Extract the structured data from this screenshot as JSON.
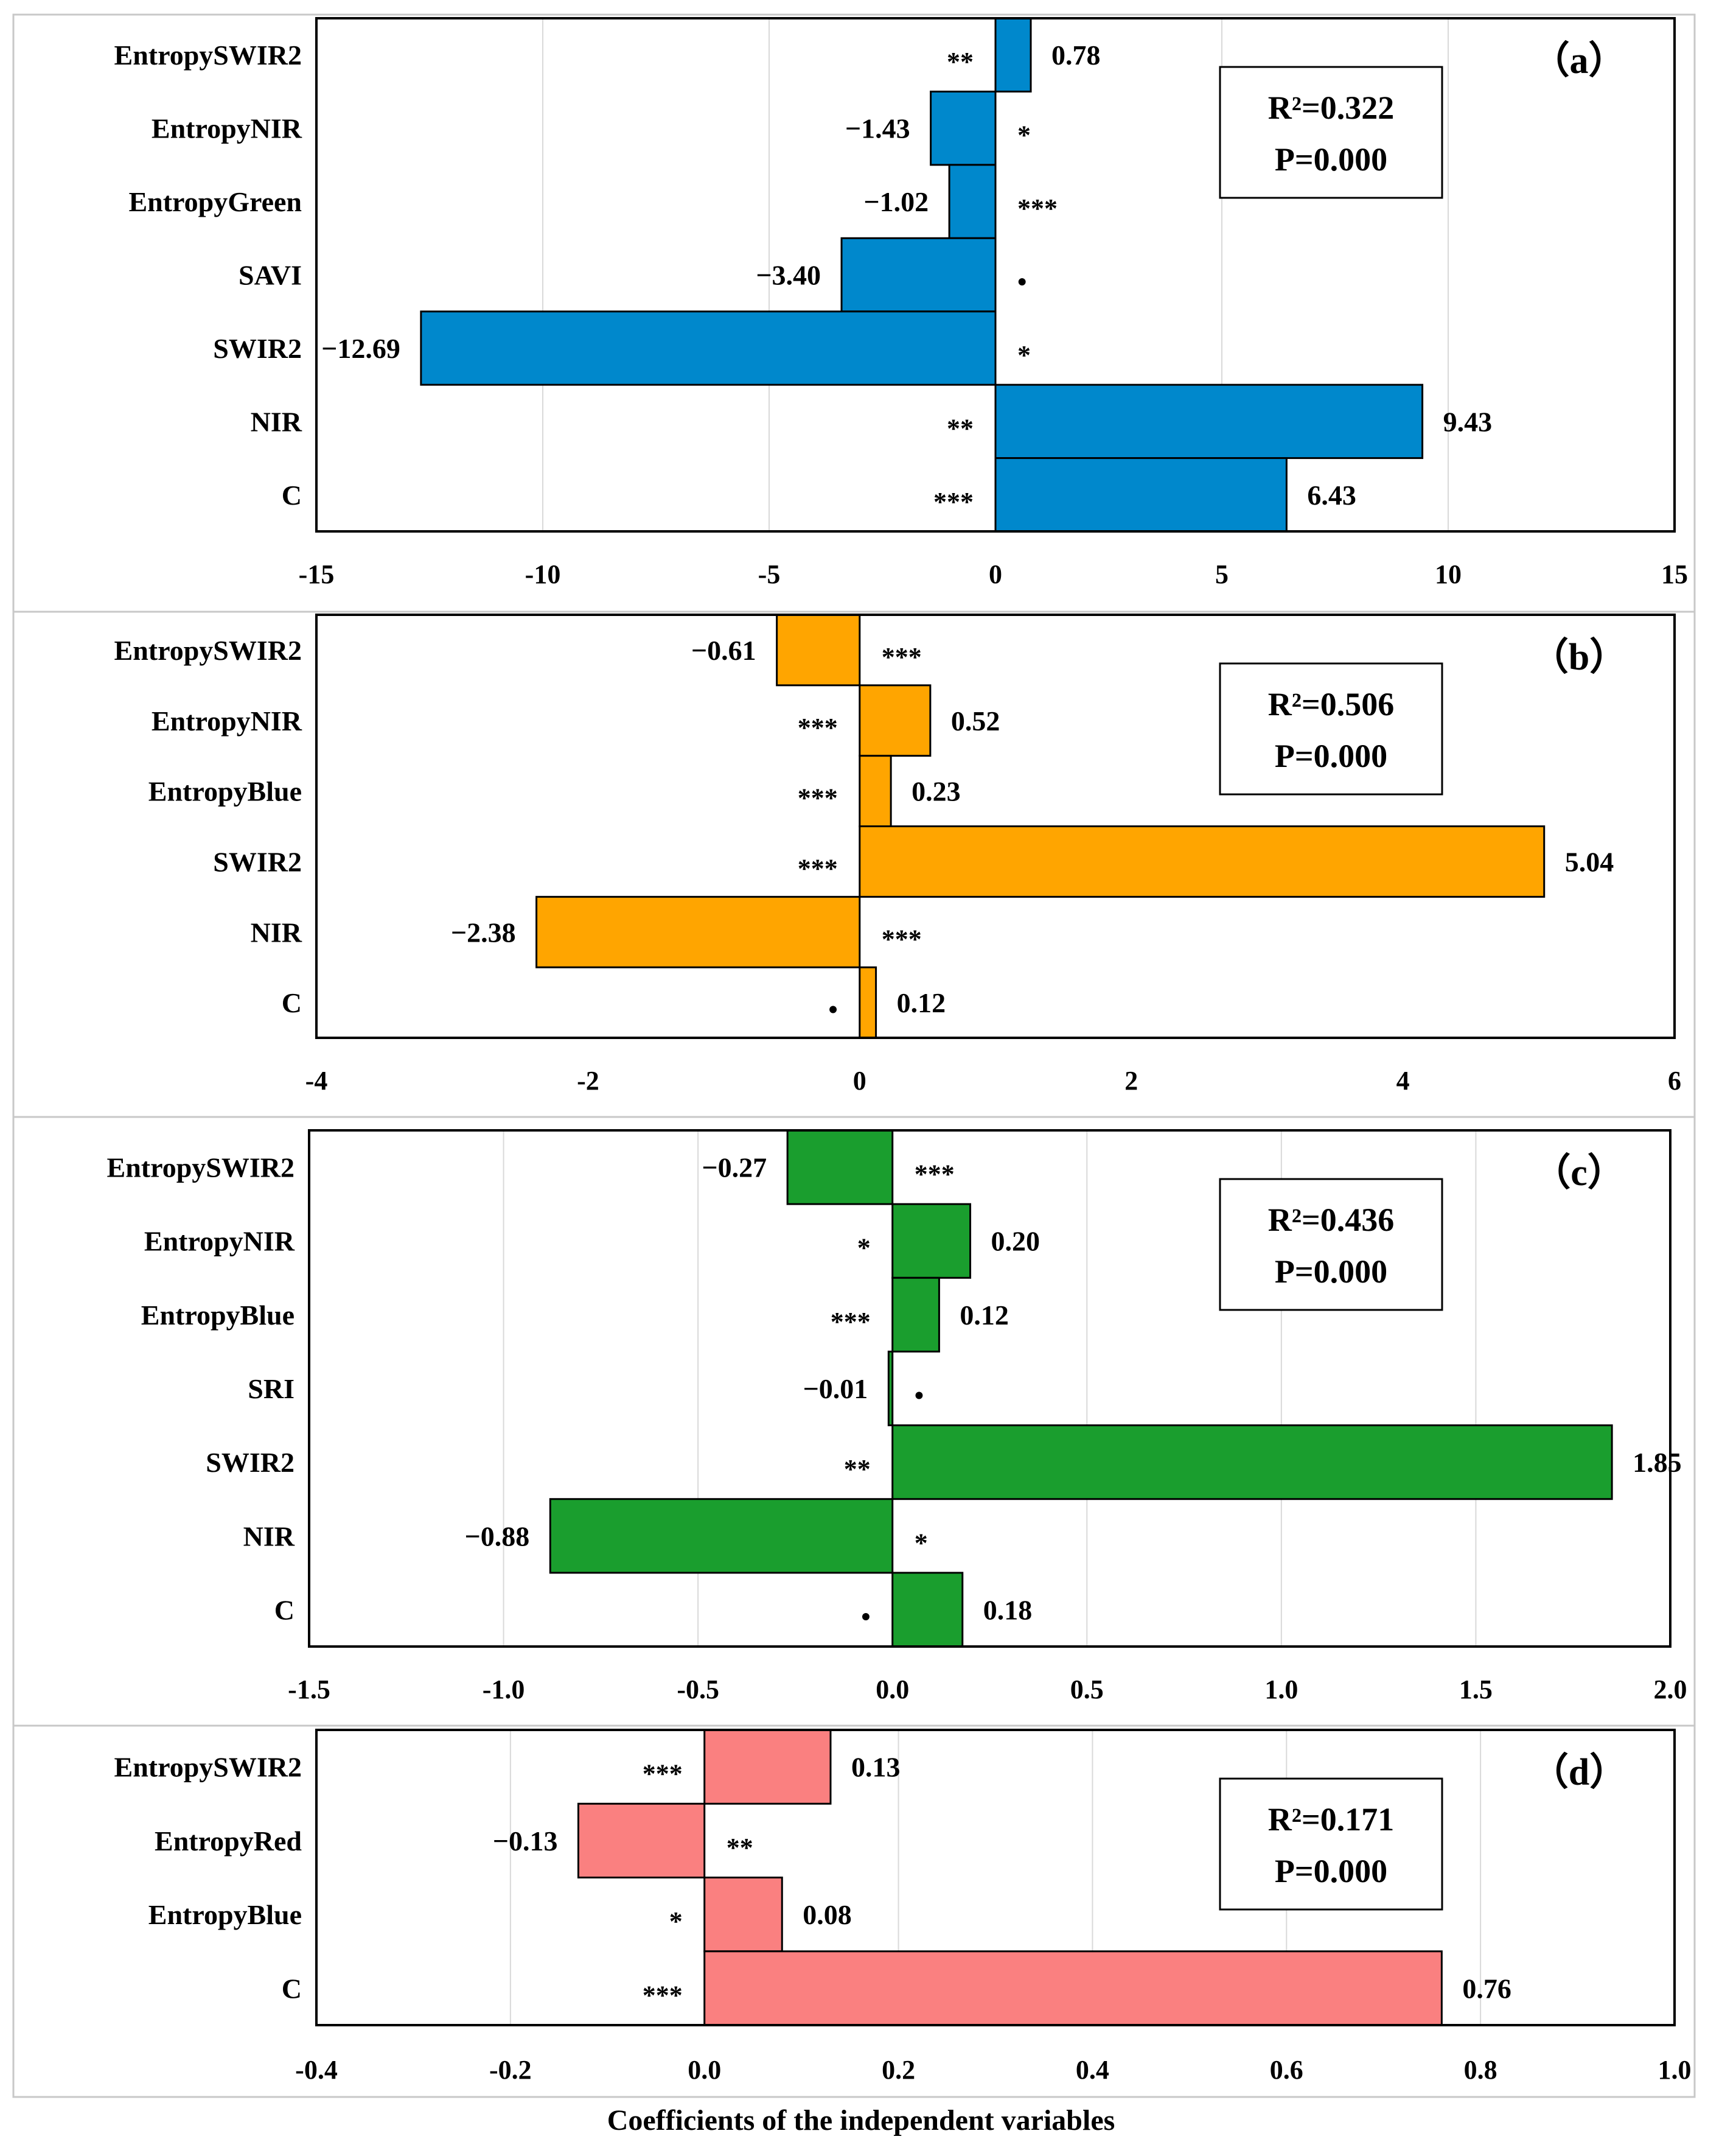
{
  "x_axis_title": "Coefficients of the independent variables",
  "chart_data": [
    {
      "type": "bar",
      "orientation": "horizontal",
      "panel_label": "（a）",
      "stats": [
        "R²=0.322",
        "P=0.000"
      ],
      "categories": [
        "EntropySWIR2",
        "EntropyNIR",
        "EntropyGreen",
        "SAVI",
        "SWIR2",
        "NIR",
        "C"
      ],
      "values": [
        0.78,
        -1.43,
        -1.02,
        -3.4,
        -12.69,
        9.43,
        6.43
      ],
      "value_labels": [
        "0.78",
        "−1.43",
        "−1.02",
        "−3.40",
        "−12.69",
        "9.43",
        "6.43"
      ],
      "significance": [
        "**",
        "*",
        "***",
        "•",
        "*",
        "**",
        "***"
      ],
      "xlim": [
        -15,
        15
      ],
      "xticks": [
        "-15",
        "-10",
        "-5",
        "0",
        "5",
        "10",
        "15"
      ],
      "grid": "vertical",
      "color": "#0088CC"
    },
    {
      "type": "bar",
      "orientation": "horizontal",
      "panel_label": "（b）",
      "stats": [
        "R²=0.506",
        "P=0.000"
      ],
      "categories": [
        "EntropySWIR2",
        "EntropyNIR",
        "EntropyBlue",
        "SWIR2",
        "NIR",
        "C"
      ],
      "values": [
        -0.61,
        0.52,
        0.23,
        5.04,
        -2.38,
        0.12
      ],
      "value_labels": [
        "−0.61",
        "0.52",
        "0.23",
        "5.04",
        "−2.38",
        "0.12"
      ],
      "significance": [
        "***",
        "***",
        "***",
        "***",
        "***",
        "•"
      ],
      "xlim": [
        -4,
        6
      ],
      "xticks": [
        "-4",
        "-2",
        "0",
        "2",
        "4",
        "6"
      ],
      "grid": "none",
      "color": "#FFA500"
    },
    {
      "type": "bar",
      "orientation": "horizontal",
      "panel_label": "（c）",
      "stats": [
        "R²=0.436",
        "P=0.000"
      ],
      "categories": [
        "EntropySWIR2",
        "EntropyNIR",
        "EntropyBlue",
        "SRI",
        "SWIR2",
        "NIR",
        "C"
      ],
      "values": [
        -0.27,
        0.2,
        0.12,
        -0.01,
        1.85,
        -0.88,
        0.18
      ],
      "value_labels": [
        "−0.27",
        "0.20",
        "0.12",
        "−0.01",
        "1.85",
        "−0.88",
        "0.18"
      ],
      "significance": [
        "***",
        "*",
        "***",
        "•",
        "**",
        "*",
        "•"
      ],
      "xlim": [
        -1.5,
        2.0
      ],
      "xticks": [
        "-1.5",
        "-1.0",
        "-0.5",
        "0.0",
        "0.5",
        "1.0",
        "1.5",
        "2.0"
      ],
      "grid": "vertical",
      "color": "#1A9E2E"
    },
    {
      "type": "bar",
      "orientation": "horizontal",
      "panel_label": "（d）",
      "stats": [
        "R²=0.171",
        "P=0.000"
      ],
      "categories": [
        "EntropySWIR2",
        "EntropyRed",
        "EntropyBlue",
        "C"
      ],
      "values": [
        0.13,
        -0.13,
        0.08,
        0.76
      ],
      "value_labels": [
        "0.13",
        "−0.13",
        "0.08",
        "0.76"
      ],
      "significance": [
        "***",
        "**",
        "*",
        "***"
      ],
      "xlim": [
        -0.4,
        1.0
      ],
      "xticks": [
        "-0.4",
        "-0.2",
        "0.0",
        "0.2",
        "0.4",
        "0.6",
        "0.8",
        "1.0"
      ],
      "grid": "vertical",
      "color": "#FA8080"
    }
  ]
}
